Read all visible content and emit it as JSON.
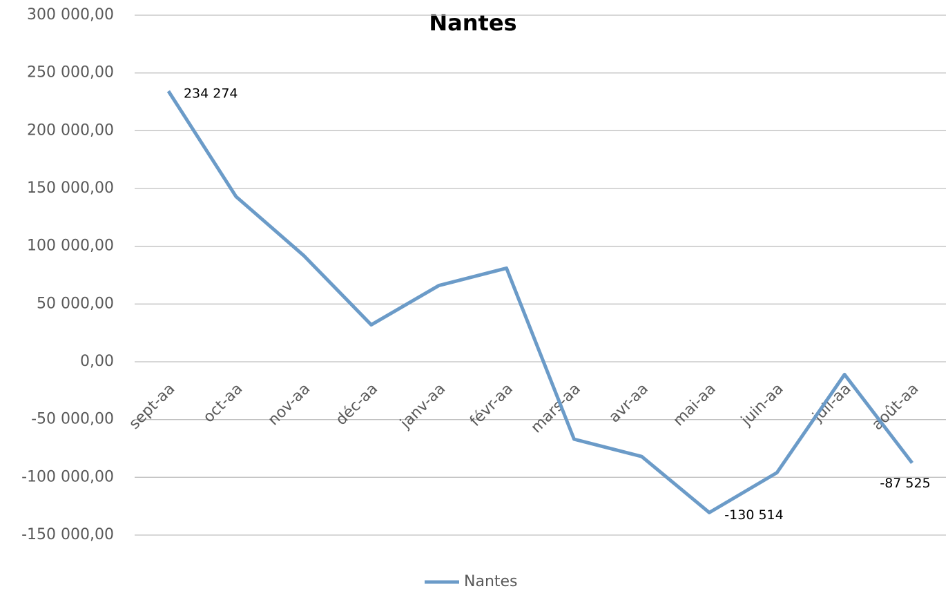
{
  "chart_data": {
    "type": "line",
    "title": "Nantes",
    "categories": [
      "sept-aa",
      "oct-aa",
      "nov-aa",
      "déc-aa",
      "janv-aa",
      "févr-aa",
      "mars-aa",
      "avr-aa",
      "mai-aa",
      "juin-aa",
      "juil-aa",
      "août-aa"
    ],
    "series": [
      {
        "name": "Nantes",
        "color": "#6b9bc8",
        "values": [
          234274,
          143000,
          92000,
          32000,
          66000,
          81000,
          -67000,
          -82000,
          -130514,
          -96000,
          -11000,
          -87525
        ],
        "value_labels": [
          "234 274",
          null,
          null,
          null,
          null,
          null,
          null,
          null,
          "-130 514",
          null,
          null,
          "-87 525"
        ]
      }
    ],
    "ylim": [
      -150000,
      300000
    ],
    "yticks": [
      {
        "value": -150000,
        "label": "-150 000,00"
      },
      {
        "value": -100000,
        "label": "-100 000,00"
      },
      {
        "value": -50000,
        "label": "-50 000,00"
      },
      {
        "value": 0,
        "label": "0,00"
      },
      {
        "value": 50000,
        "label": "50 000,00"
      },
      {
        "value": 100000,
        "label": "100 000,00"
      },
      {
        "value": 150000,
        "label": "150 000,00"
      },
      {
        "value": 200000,
        "label": "200 000,00"
      },
      {
        "value": 250000,
        "label": "250 000,00"
      },
      {
        "value": 300000,
        "label": "300 000,00"
      }
    ],
    "grid": true,
    "legend": "bottom"
  }
}
